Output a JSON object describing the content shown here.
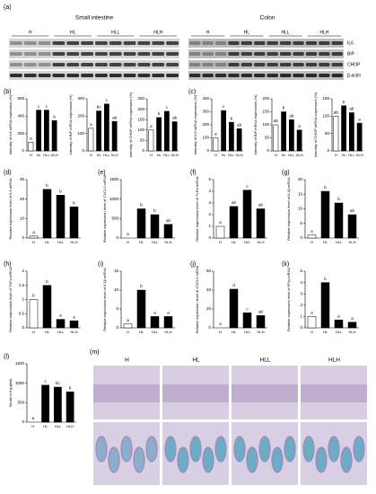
{
  "blot": {
    "panel": "(a)",
    "tissues": [
      "Small intestine",
      "Colon"
    ],
    "groups": [
      "H",
      "HL",
      "HLL",
      "HLH"
    ],
    "proteins": [
      "IL6",
      "BiP",
      "CHOP",
      "β-actin"
    ]
  },
  "histology": {
    "panel": "(m)",
    "groups": [
      "H",
      "HL",
      "HLL",
      "HLH"
    ]
  },
  "chart_data": [
    {
      "type": "bar",
      "panel": "(b)",
      "ylabel": "Intensity of IL6 mRNA expression (%)",
      "categories": [
        "H",
        "HL",
        "HLL",
        "HLH"
      ],
      "values": [
        100,
        470,
        470,
        350
      ],
      "letters": [
        "a",
        "c",
        "c",
        "b"
      ],
      "colors": [
        "#ffffff",
        "#000000",
        "#000000",
        "#000000"
      ],
      "ylim": [
        0,
        600
      ],
      "yticks": [
        0,
        200,
        400,
        600
      ]
    },
    {
      "type": "bar",
      "ylabel": "Intensity of BiP mRNA expression (%)",
      "categories": [
        "H",
        "HL",
        "HLL",
        "HLH"
      ],
      "values": [
        130,
        230,
        270,
        170
      ],
      "letters": [
        "a",
        "bc",
        "c",
        "ab"
      ],
      "colors": [
        "#ffffff",
        "#000000",
        "#000000",
        "#000000"
      ],
      "ylim": [
        0,
        300
      ],
      "yticks": [
        0,
        100,
        200,
        300
      ]
    },
    {
      "type": "bar",
      "ylabel": "Intensity of CHOP mRNA expression (%)",
      "categories": [
        "H",
        "HL",
        "HLL",
        "HLH"
      ],
      "values": [
        100,
        160,
        190,
        140
      ],
      "letters": [
        "a",
        "b",
        "c",
        "ab"
      ],
      "colors": [
        "#ffffff",
        "#000000",
        "#000000",
        "#000000"
      ],
      "ylim": [
        0,
        250
      ],
      "yticks": [
        0,
        50,
        100,
        150,
        200,
        250
      ]
    },
    {
      "type": "bar",
      "panel": "(c)",
      "ylabel": "Intensity of IL6 mRNA expression (%)",
      "categories": [
        "H",
        "HL",
        "HLL",
        "HLH"
      ],
      "values": [
        100,
        310,
        220,
        170
      ],
      "letters": [
        "a",
        "c",
        "b",
        "ab"
      ],
      "colors": [
        "#ffffff",
        "#000000",
        "#000000",
        "#000000"
      ],
      "ylim": [
        0,
        400
      ],
      "yticks": [
        0,
        100,
        200,
        300,
        400
      ]
    },
    {
      "type": "bar",
      "ylabel": "Intensity of BiP mRNA expression (%)",
      "categories": [
        "H",
        "HL",
        "HLL",
        "HLH"
      ],
      "values": [
        100,
        150,
        120,
        80
      ],
      "letters": [
        "ab",
        "b",
        "ab",
        "a"
      ],
      "colors": [
        "#ffffff",
        "#000000",
        "#000000",
        "#000000"
      ],
      "ylim": [
        0,
        200
      ],
      "yticks": [
        0,
        50,
        100,
        150,
        200
      ]
    },
    {
      "type": "bar",
      "ylabel": "Intensity of CHOP mRNA expression (%)",
      "categories": [
        "H",
        "HL",
        "HLL",
        "HLH"
      ],
      "values": [
        100,
        130,
        110,
        80
      ],
      "letters": [
        "ab",
        "b",
        "ab",
        "a"
      ],
      "colors": [
        "#ffffff",
        "#000000",
        "#000000",
        "#000000"
      ],
      "ylim": [
        0,
        150
      ],
      "yticks": [
        0,
        50,
        100,
        150
      ]
    },
    {
      "type": "bar",
      "panel": "(d)",
      "ylabel": "Relative expression level of IL6 mRNA",
      "categories": [
        "H",
        "HL",
        "HLL",
        "HLH"
      ],
      "values": [
        1,
        25,
        22,
        16
      ],
      "letters": [
        "a",
        "b",
        "b",
        "b"
      ],
      "colors": [
        "#ffffff",
        "#000000",
        "#000000",
        "#000000"
      ],
      "ylim": [
        0,
        30
      ],
      "yticks": [
        0,
        10,
        20,
        30
      ]
    },
    {
      "type": "bar",
      "panel": "(e)",
      "ylabel": "Relative expression level of CXCL1 mRNA",
      "categories": [
        "H",
        "HL",
        "HLL",
        "HLH"
      ],
      "values": [
        0,
        750,
        600,
        350
      ],
      "letters": [
        "a",
        "b",
        "b",
        "ab"
      ],
      "colors": [
        "#ffffff",
        "#000000",
        "#000000",
        "#000000"
      ],
      "ylim": [
        0,
        1500
      ],
      "yticks": [
        0,
        500,
        1000,
        1500
      ]
    },
    {
      "type": "bar",
      "panel": "(f)",
      "ylabel": "Relative expression level of TLR4 mRNA",
      "categories": [
        "H",
        "HL",
        "HLL",
        "HLH"
      ],
      "values": [
        1,
        2.7,
        4.1,
        2.5
      ],
      "letters": [
        "a",
        "ab",
        "c",
        "ab"
      ],
      "colors": [
        "#ffffff",
        "#000000",
        "#000000",
        "#000000"
      ],
      "ylim": [
        0,
        5
      ],
      "yticks": [
        0,
        1,
        2,
        3,
        4,
        5
      ]
    },
    {
      "type": "bar",
      "panel": "(g)",
      "ylabel": "Relative expression level of IL1β mRNA",
      "categories": [
        "H",
        "HL",
        "HLL",
        "HLH"
      ],
      "values": [
        1,
        16,
        12,
        8
      ],
      "letters": [
        "a",
        "b",
        "b",
        "ab"
      ],
      "colors": [
        "#ffffff",
        "#000000",
        "#000000",
        "#000000"
      ],
      "ylim": [
        0,
        20
      ],
      "yticks": [
        0,
        5,
        10,
        15,
        20
      ]
    },
    {
      "type": "bar",
      "panel": "(h)",
      "ylabel": "Relative expression level of TNFα mRNA",
      "categories": [
        "H",
        "HL",
        "HLL",
        "HLH"
      ],
      "values": [
        1,
        1.5,
        0.3,
        0.25
      ],
      "letters": [
        "b",
        "b",
        "a",
        "a"
      ],
      "colors": [
        "#ffffff",
        "#000000",
        "#000000",
        "#000000"
      ],
      "ylim": [
        0,
        2
      ],
      "yticks": [
        0,
        0.5,
        1,
        1.5,
        2
      ]
    },
    {
      "type": "bar",
      "panel": "(i)",
      "ylabel": "Relative expression level of IL1β mRNA",
      "categories": [
        "H",
        "HL",
        "HLL",
        "HLH"
      ],
      "values": [
        1,
        10,
        3,
        3
      ],
      "letters": [
        "a",
        "b",
        "a",
        "a"
      ],
      "colors": [
        "#ffffff",
        "#000000",
        "#000000",
        "#000000"
      ],
      "ylim": [
        0,
        15
      ],
      "yticks": [
        0,
        5,
        10,
        15
      ]
    },
    {
      "type": "bar",
      "panel": "(j)",
      "ylabel": "Relative expression level of CXCL1 mRNA",
      "categories": [
        "H",
        "HL",
        "HLL",
        "HLH"
      ],
      "values": [
        0,
        41,
        16,
        13
      ],
      "letters": [
        "a",
        "d",
        "c",
        "ab"
      ],
      "colors": [
        "#ffffff",
        "#000000",
        "#000000",
        "#000000"
      ],
      "ylim": [
        0,
        60
      ],
      "yticks": [
        0,
        20,
        40,
        60
      ]
    },
    {
      "type": "bar",
      "panel": "(k)",
      "ylabel": "Relative expression level of IFNγ mRNA",
      "categories": [
        "H",
        "HL",
        "HLL",
        "HLH"
      ],
      "values": [
        1,
        4,
        0.7,
        0.5
      ],
      "letters": [
        "a",
        "b",
        "a",
        "a"
      ],
      "colors": [
        "#ffffff",
        "#000000",
        "#000000",
        "#000000"
      ],
      "ylim": [
        0,
        5
      ],
      "yticks": [
        0,
        1,
        2,
        3,
        4,
        5
      ]
    },
    {
      "type": "bar",
      "panel": "(l)",
      "ylabel": "Serum IL6 (pg/ml)",
      "categories": [
        "H",
        "HL",
        "HLL",
        "HLH"
      ],
      "values": [
        0,
        950,
        900,
        780
      ],
      "letters": [
        "a",
        "c",
        "bc",
        "b"
      ],
      "colors": [
        "#ffffff",
        "#000000",
        "#000000",
        "#000000"
      ],
      "ylim": [
        0,
        1500
      ],
      "yticks": [
        0,
        500,
        1000,
        1500
      ]
    }
  ]
}
